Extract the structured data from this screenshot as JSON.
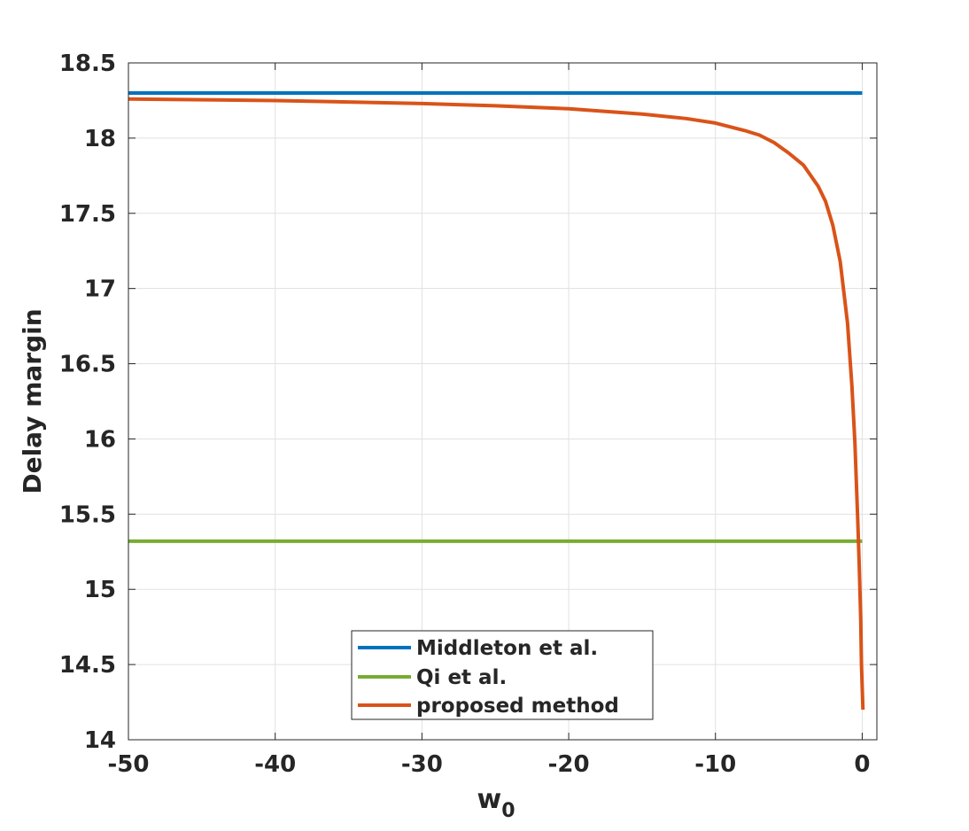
{
  "chart_data": {
    "type": "line",
    "xlabel": "w",
    "xlabel_subscript": "0",
    "ylabel": "Delay margin",
    "xlim": [
      -50,
      1
    ],
    "ylim": [
      14,
      18.5
    ],
    "xticks": [
      -50,
      -40,
      -30,
      -20,
      -10,
      0
    ],
    "yticks": [
      14,
      14.5,
      15,
      15.5,
      16,
      16.5,
      17,
      17.5,
      18,
      18.5
    ],
    "xtick_labels": [
      "-50",
      "-40",
      "-30",
      "-20",
      "-10",
      "0"
    ],
    "ytick_labels": [
      "14",
      "14.5",
      "15",
      "15.5",
      "16",
      "16.5",
      "17",
      "17.5",
      "18",
      "18.5"
    ],
    "grid": true,
    "legend_position": "bottom-center",
    "series": [
      {
        "name": "Middleton et al.",
        "color": "#0072BD",
        "x": [
          -50,
          0
        ],
        "y": [
          18.3,
          18.3
        ]
      },
      {
        "name": "Qi et al.",
        "color": "#77AC30",
        "x": [
          -50,
          0
        ],
        "y": [
          15.32,
          15.32
        ]
      },
      {
        "name": "proposed method",
        "color": "#D95319",
        "x": [
          -50,
          -40,
          -30,
          -25,
          -20,
          -15,
          -12,
          -10,
          -8,
          -7,
          -6,
          -5,
          -4,
          -3,
          -2.5,
          -2,
          -1.5,
          -1,
          -0.7,
          -0.5,
          -0.3,
          -0.2,
          -0.1,
          -0.05,
          0.05
        ],
        "y": [
          18.26,
          18.25,
          18.23,
          18.215,
          18.195,
          18.16,
          18.13,
          18.1,
          18.05,
          18.02,
          17.97,
          17.9,
          17.82,
          17.68,
          17.58,
          17.42,
          17.18,
          16.77,
          16.35,
          15.98,
          15.45,
          15.15,
          14.8,
          14.5,
          14.2
        ]
      }
    ]
  }
}
